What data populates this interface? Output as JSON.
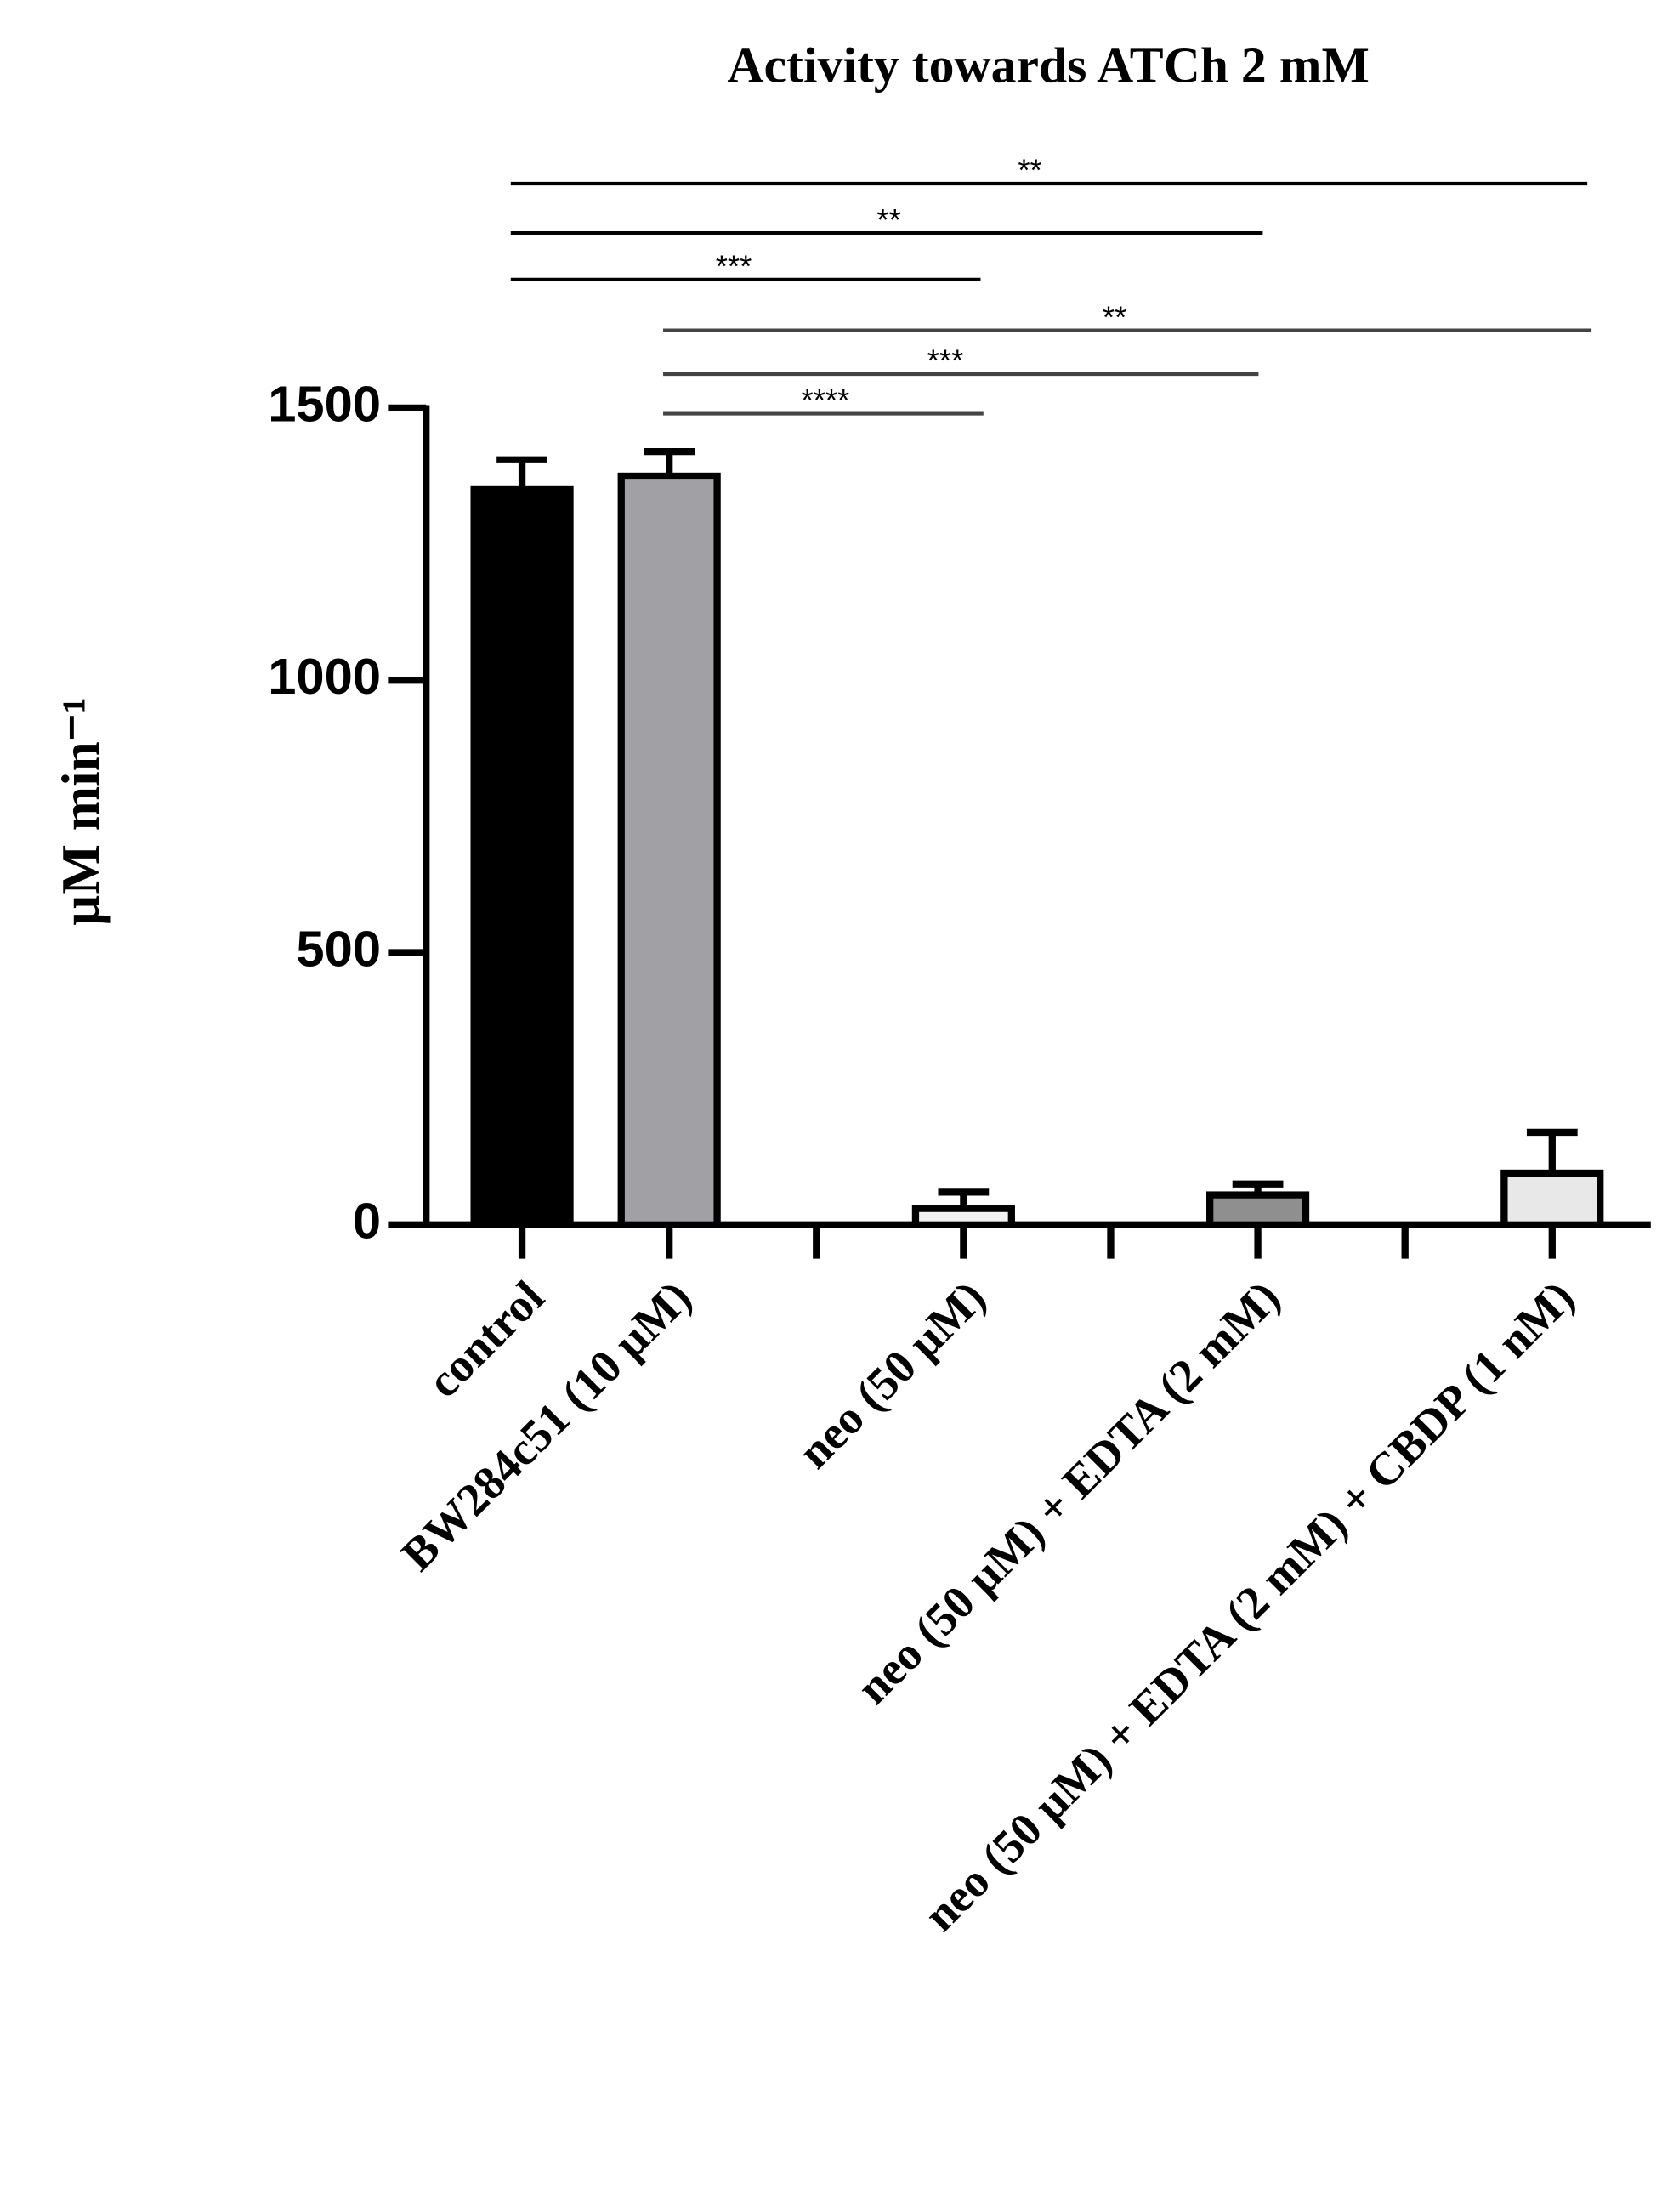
{
  "chart_data": {
    "type": "bar",
    "title": "Activity towards ATCh 2 mM",
    "y_label": "µM min⁻¹",
    "categories": [
      "control",
      "BW284c51 (10 µM)",
      null,
      "neo (50 µM)",
      null,
      "neo (50 µM) + EDTA (2 mM)",
      null,
      "neo (50 µM) + EDTA (2 mM) + CBDP (1 nM)"
    ],
    "values": [
      1350,
      1375,
      null,
      30,
      null,
      55,
      null,
      95
    ],
    "errors": [
      55,
      45,
      null,
      30,
      null,
      20,
      null,
      75
    ],
    "colors": [
      "#000000",
      "#a1a0a5",
      null,
      "#f2f2f2",
      null,
      "#8f8f8f",
      null,
      "#e8e8e8"
    ],
    "ylim": [
      0,
      1500
    ],
    "yticks": [
      0,
      500,
      1000,
      1500
    ],
    "annotations": [
      "**",
      "**",
      "***",
      "**",
      "***",
      "****"
    ]
  }
}
